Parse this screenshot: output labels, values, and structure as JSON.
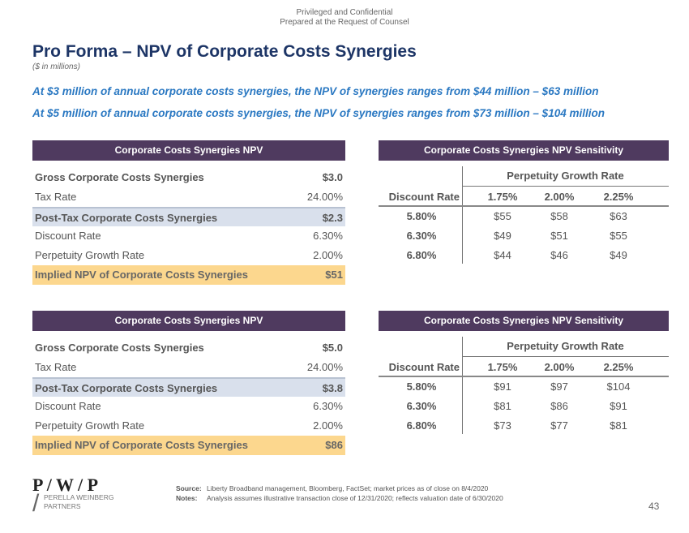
{
  "header": {
    "line1": "Privileged and Confidential",
    "line2": "Prepared at the Request of Counsel"
  },
  "title": "Pro Forma – NPV of Corporate Costs Synergies",
  "subtitle": "($ in millions)",
  "headlines": [
    "At $3 million of annual corporate costs synergies, the NPV of synergies ranges from $44 million – $63 million",
    "At $5 million of annual corporate costs synergies, the NPV of synergies ranges from $73 million – $104 million"
  ],
  "sections": [
    {
      "npv_title": "Corporate Costs Synergies NPV",
      "sens_title": "Corporate Costs Synergies NPV Sensitivity",
      "rows": [
        {
          "label": "Gross Corporate Costs Synergies",
          "value": "$3.0"
        },
        {
          "label": "Tax Rate",
          "value": "24.00%"
        },
        {
          "label": "Post-Tax Corporate Costs Synergies",
          "value": "$2.3"
        },
        {
          "label": "Discount Rate",
          "value": "6.30%"
        },
        {
          "label": "Perpetuity Growth Rate",
          "value": "2.00%"
        },
        {
          "label": "Implied NPV of Corporate Costs Synergies",
          "value": "$51"
        }
      ],
      "sens": {
        "col_group": "Perpetuity Growth Rate",
        "row_header": "Discount Rate",
        "cols": [
          "1.75%",
          "2.00%",
          "2.25%"
        ],
        "rows": [
          {
            "rate": "5.80%",
            "vals": [
              "$55",
              "$58",
              "$63"
            ]
          },
          {
            "rate": "6.30%",
            "vals": [
              "$49",
              "$51",
              "$55"
            ]
          },
          {
            "rate": "6.80%",
            "vals": [
              "$44",
              "$46",
              "$49"
            ]
          }
        ]
      }
    },
    {
      "npv_title": "Corporate Costs Synergies NPV",
      "sens_title": "Corporate Costs Synergies NPV Sensitivity",
      "rows": [
        {
          "label": "Gross Corporate Costs Synergies",
          "value": "$5.0"
        },
        {
          "label": "Tax Rate",
          "value": "24.00%"
        },
        {
          "label": "Post-Tax Corporate Costs Synergies",
          "value": "$3.8"
        },
        {
          "label": "Discount Rate",
          "value": "6.30%"
        },
        {
          "label": "Perpetuity Growth Rate",
          "value": "2.00%"
        },
        {
          "label": "Implied NPV of Corporate Costs Synergies",
          "value": "$86"
        }
      ],
      "sens": {
        "col_group": "Perpetuity Growth Rate",
        "row_header": "Discount Rate",
        "cols": [
          "1.75%",
          "2.00%",
          "2.25%"
        ],
        "rows": [
          {
            "rate": "5.80%",
            "vals": [
              "$91",
              "$97",
              "$104"
            ]
          },
          {
            "rate": "6.30%",
            "vals": [
              "$81",
              "$86",
              "$91"
            ]
          },
          {
            "rate": "6.80%",
            "vals": [
              "$73",
              "$77",
              "$81"
            ]
          }
        ]
      }
    }
  ],
  "footer": {
    "logo": "P / W / P",
    "logo_name1": "PERELLA WEINBERG",
    "logo_name2": "PARTNERS",
    "source_label": "Source:",
    "source": "Liberty Broadband management, Bloomberg, FactSet; market prices as of close on 8/4/2020",
    "notes_label": "Notes:",
    "notes": "Analysis assumes illustrative transaction close of 12/31/2020; reflects valuation date of 6/30/2020",
    "page": "43"
  }
}
